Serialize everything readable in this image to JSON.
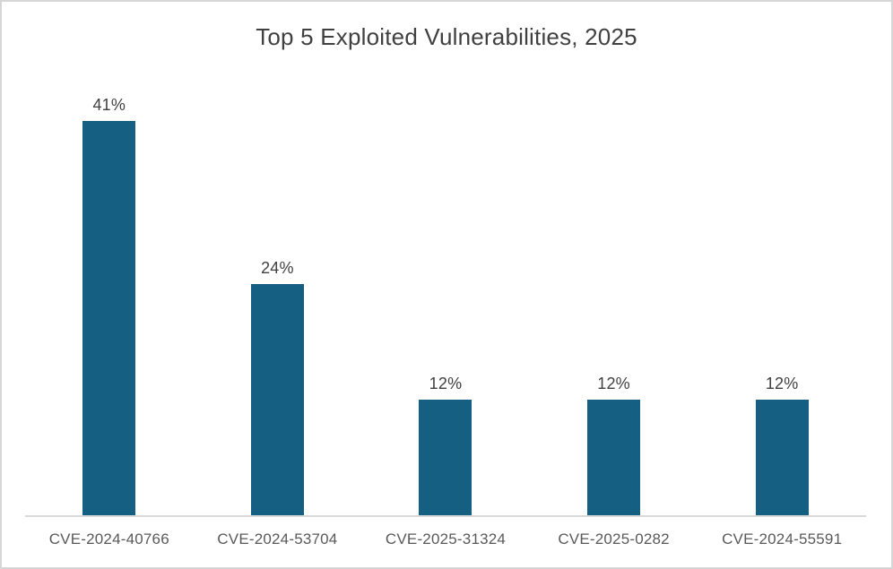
{
  "chart_data": {
    "type": "bar",
    "title": "Top 5 Exploited Vulnerabilities, 2025",
    "categories": [
      "CVE-2024-40766",
      "CVE-2024-53704",
      "CVE-2025-31324",
      "CVE-2025-0282",
      "CVE-2024-55591"
    ],
    "values": [
      41,
      24,
      12,
      12,
      12
    ],
    "value_labels": [
      "41%",
      "24%",
      "12%",
      "12%",
      "12%"
    ],
    "xlabel": "",
    "ylabel": "",
    "ylim": [
      0,
      45
    ],
    "grid": false,
    "legend": false,
    "colors": {
      "bar": "#156082",
      "title": "#404040",
      "value_label": "#404040",
      "category_label": "#595959",
      "axis_line": "#d9d9d9",
      "canvas_border": "#d6d6d6",
      "background": "#ffffff"
    }
  }
}
